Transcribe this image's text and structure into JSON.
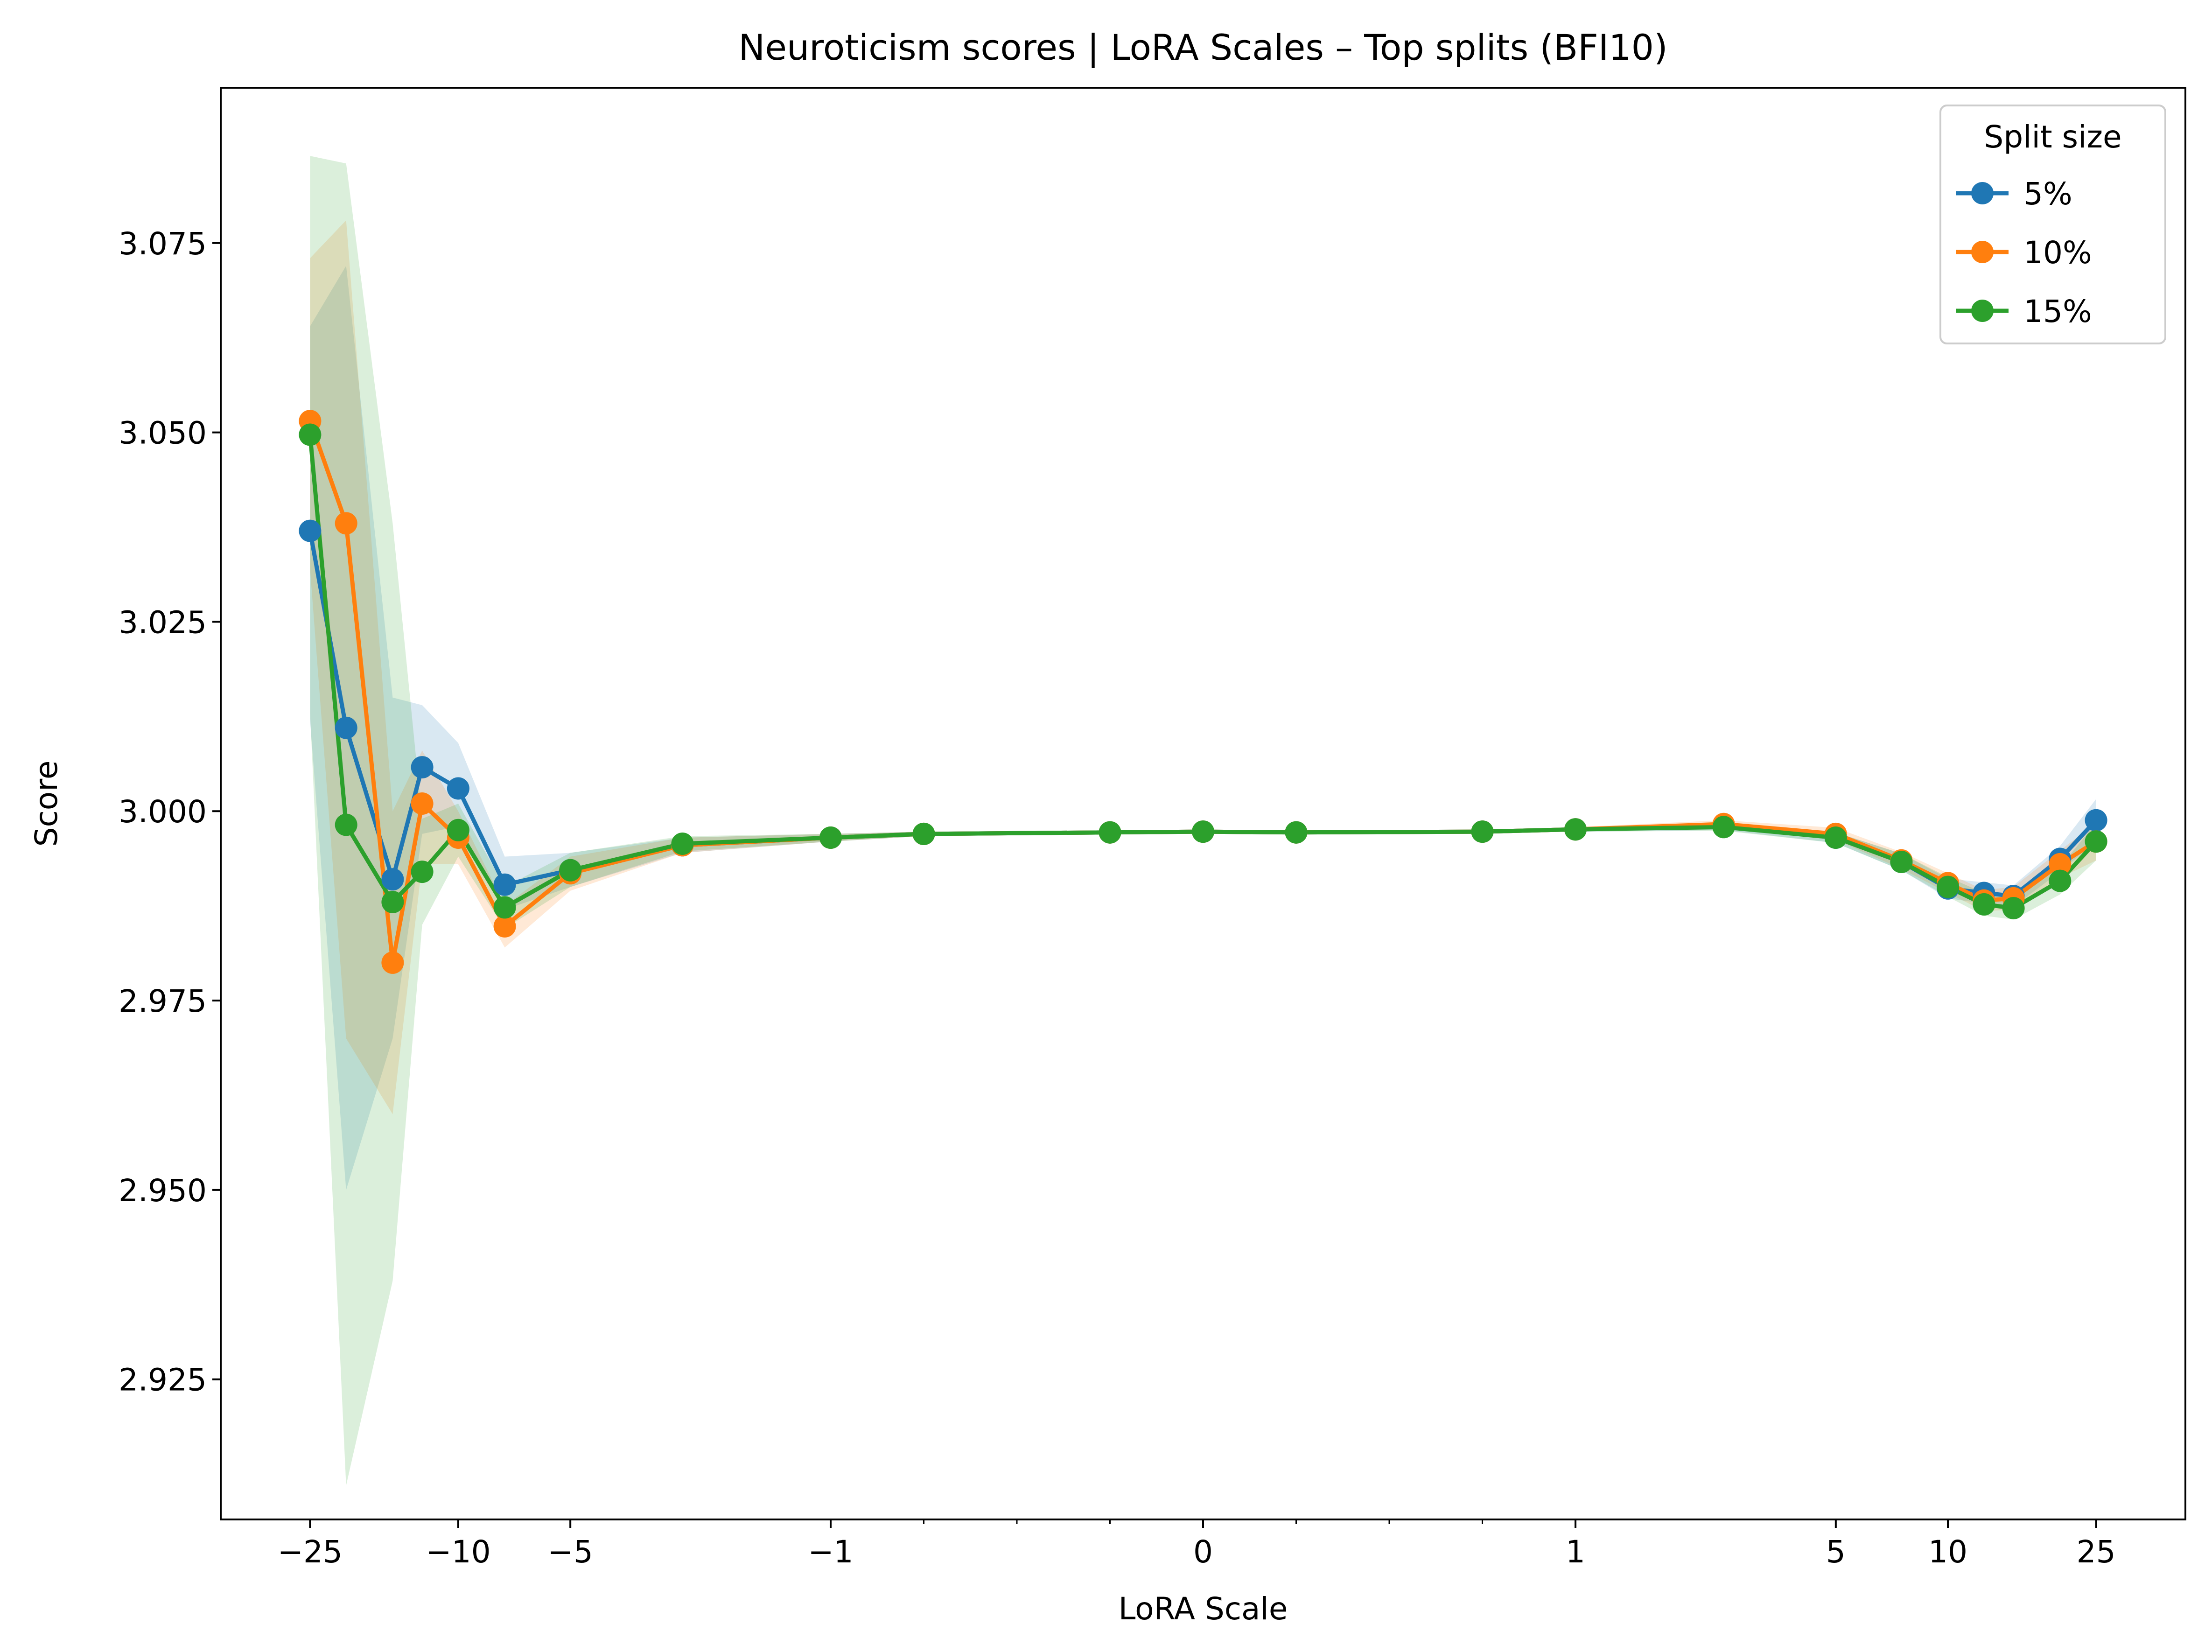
{
  "chart_data": {
    "type": "line",
    "title": "Neuroticism scores | LoRA Scales – Top splits (BFI10)",
    "xlabel": "LoRA Scale",
    "ylabel": "Score",
    "xscale": "symlog",
    "ylim": [
      2.9065,
      3.0955
    ],
    "xticks": [
      {
        "value": -25,
        "label": "−25"
      },
      {
        "value": -10,
        "label": "−10"
      },
      {
        "value": -5,
        "label": "−5"
      },
      {
        "value": -1,
        "label": "−1"
      },
      {
        "value": 0,
        "label": "0"
      },
      {
        "value": 1,
        "label": "1"
      },
      {
        "value": 5,
        "label": "5"
      },
      {
        "value": 10,
        "label": "10"
      },
      {
        "value": 25,
        "label": "25"
      }
    ],
    "yticks": [
      {
        "value": 2.925,
        "label": "2.925"
      },
      {
        "value": 2.95,
        "label": "2.950"
      },
      {
        "value": 2.975,
        "label": "2.975"
      },
      {
        "value": 3.0,
        "label": "3.000"
      },
      {
        "value": 3.025,
        "label": "3.025"
      },
      {
        "value": 3.05,
        "label": "3.050"
      },
      {
        "value": 3.075,
        "label": "3.075"
      }
    ],
    "legend": {
      "title": "Split size",
      "position": "upper right"
    },
    "grid": false,
    "x": [
      -25,
      -20,
      -15,
      -12.5,
      -10,
      -7.5,
      -5,
      -2.5,
      -1,
      -0.75,
      -0.25,
      0,
      0.25,
      0.75,
      1,
      2.5,
      5,
      7.5,
      10,
      12.5,
      15,
      20,
      25
    ],
    "series": [
      {
        "name": "5%",
        "color": "#1f77b4",
        "values": [
          3.037,
          3.011,
          2.991,
          3.0058,
          3.003,
          2.9903,
          2.9922,
          2.9955,
          2.9965,
          2.997,
          2.9972,
          2.9973,
          2.9972,
          2.9973,
          2.9976,
          2.998,
          2.9965,
          2.9933,
          2.9898,
          2.9892,
          2.9888,
          2.9937,
          2.9988
        ],
        "band_lower": [
          3.012,
          2.95,
          2.97,
          2.997,
          2.998,
          2.987,
          2.99,
          2.9945,
          2.996,
          2.9967,
          2.997,
          2.9971,
          2.997,
          2.9971,
          2.9973,
          2.9975,
          2.9958,
          2.9922,
          2.9885,
          2.9878,
          2.9874,
          2.992,
          2.996
        ],
        "band_upper": [
          3.064,
          3.072,
          3.015,
          3.014,
          3.009,
          2.994,
          2.9945,
          2.9965,
          2.997,
          2.9973,
          2.9974,
          2.9975,
          2.9974,
          2.9975,
          2.9979,
          2.9985,
          2.9972,
          2.9944,
          2.9911,
          2.9906,
          2.9902,
          2.9954,
          3.0016
        ]
      },
      {
        "name": "10%",
        "color": "#ff7f0e",
        "values": [
          3.0515,
          3.038,
          2.98,
          3.001,
          2.9965,
          2.9848,
          2.9918,
          2.9955,
          2.9965,
          2.997,
          2.9972,
          2.9973,
          2.9972,
          2.9973,
          2.9976,
          2.9983,
          2.997,
          2.9935,
          2.9905,
          2.9882,
          2.9885,
          2.993,
          2.996
        ],
        "band_lower": [
          3.032,
          2.97,
          2.96,
          2.993,
          2.993,
          2.982,
          2.9895,
          2.9945,
          2.996,
          2.9967,
          2.997,
          2.9971,
          2.997,
          2.9971,
          2.9973,
          2.9978,
          2.9962,
          2.9924,
          2.9892,
          2.9868,
          2.987,
          2.9912,
          2.9935
        ],
        "band_upper": [
          3.073,
          3.078,
          3.0,
          3.008,
          3.0,
          2.9875,
          2.994,
          2.9965,
          2.997,
          2.9973,
          2.9974,
          2.9975,
          2.9974,
          2.9975,
          2.9979,
          2.9988,
          2.9978,
          2.9946,
          2.9918,
          2.9896,
          2.99,
          2.9948,
          2.9985
        ]
      },
      {
        "name": "15%",
        "color": "#2ca02c",
        "values": [
          3.0497,
          2.9982,
          2.988,
          2.992,
          2.9975,
          2.9873,
          2.9922,
          2.9957,
          2.9965,
          2.997,
          2.9972,
          2.9973,
          2.9972,
          2.9973,
          2.9976,
          2.9979,
          2.9965,
          2.9933,
          2.99,
          2.9877,
          2.9872,
          2.9908,
          2.996
        ],
        "band_lower": [
          3.013,
          2.911,
          2.938,
          2.985,
          2.994,
          2.9845,
          2.99,
          2.9947,
          2.996,
          2.9967,
          2.997,
          2.9971,
          2.997,
          2.9971,
          2.9973,
          2.9974,
          2.9958,
          2.9922,
          2.9887,
          2.9862,
          2.9857,
          2.989,
          2.9935
        ],
        "band_upper": [
          3.0865,
          3.0855,
          3.038,
          2.999,
          3.001,
          2.99,
          2.9945,
          2.9967,
          2.997,
          2.9973,
          2.9974,
          2.9975,
          2.9974,
          2.9975,
          2.9979,
          2.9984,
          2.9972,
          2.9944,
          2.9913,
          2.9892,
          2.9887,
          2.9926,
          2.9985
        ]
      }
    ]
  }
}
